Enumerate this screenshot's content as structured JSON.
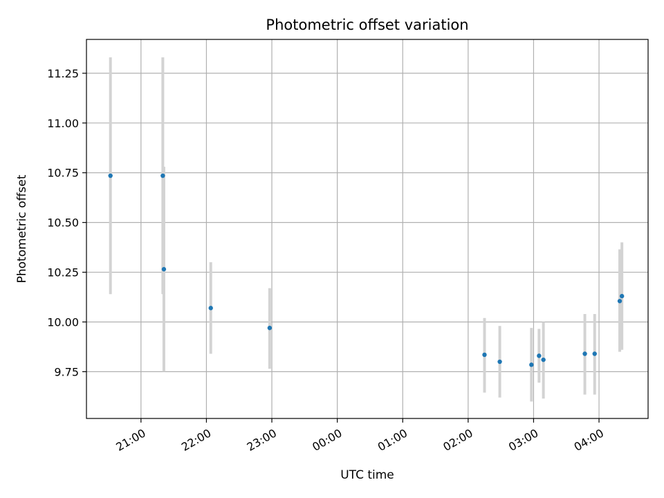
{
  "chart_data": {
    "type": "scatter",
    "title": "Photometric offset variation",
    "xlabel": "UTC time",
    "ylabel": "Photometric offset",
    "x_ticks": [
      "21:00",
      "22:00",
      "23:00",
      "00:00",
      "01:00",
      "02:00",
      "03:00",
      "04:00"
    ],
    "y_ticks": [
      "9.75",
      "10.00",
      "10.25",
      "10.50",
      "10.75",
      "11.00",
      "11.25"
    ],
    "grid": true,
    "legend": "none",
    "x_range": [
      "20:10",
      "04:45"
    ],
    "ylim": [
      9.515,
      11.42
    ],
    "marker_color": "#1f77b4",
    "errorbar_color": "#d3d3d3",
    "points": [
      {
        "t": "20:32",
        "y": 10.735,
        "ylo": 10.14,
        "yhi": 11.33
      },
      {
        "t": "21:20",
        "y": 10.735,
        "ylo": 10.14,
        "yhi": 11.33
      },
      {
        "t": "21:21",
        "y": 10.265,
        "ylo": 9.75,
        "yhi": 10.78
      },
      {
        "t": "22:04",
        "y": 10.07,
        "ylo": 9.84,
        "yhi": 10.3
      },
      {
        "t": "22:58",
        "y": 9.97,
        "ylo": 9.765,
        "yhi": 10.17
      },
      {
        "t": "02:15",
        "y": 9.835,
        "ylo": 9.645,
        "yhi": 10.02
      },
      {
        "t": "02:29",
        "y": 9.8,
        "ylo": 9.62,
        "yhi": 9.98
      },
      {
        "t": "02:58",
        "y": 9.785,
        "ylo": 9.6,
        "yhi": 9.97
      },
      {
        "t": "03:05",
        "y": 9.83,
        "ylo": 9.695,
        "yhi": 9.965
      },
      {
        "t": "03:09",
        "y": 9.81,
        "ylo": 9.615,
        "yhi": 10.0
      },
      {
        "t": "03:47",
        "y": 9.84,
        "ylo": 9.635,
        "yhi": 10.04
      },
      {
        "t": "03:56",
        "y": 9.84,
        "ylo": 9.635,
        "yhi": 10.04
      },
      {
        "t": "04:19",
        "y": 10.105,
        "ylo": 9.85,
        "yhi": 10.365
      },
      {
        "t": "04:21",
        "y": 10.13,
        "ylo": 9.86,
        "yhi": 10.4
      }
    ]
  }
}
